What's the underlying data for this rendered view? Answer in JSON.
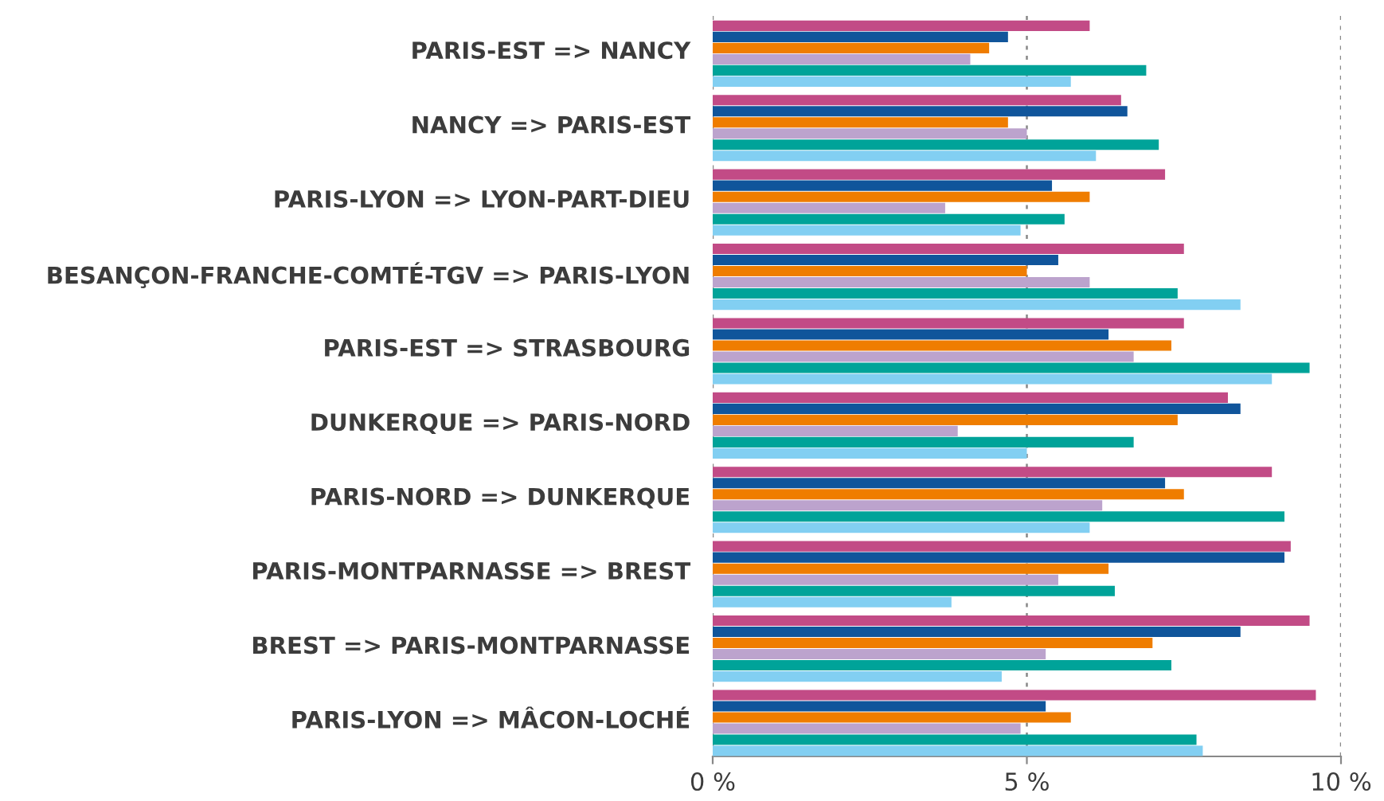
{
  "chart_data": {
    "type": "bar",
    "orientation": "horizontal",
    "categories": [
      "PARIS-EST => NANCY",
      "NANCY => PARIS-EST",
      "PARIS-LYON => LYON-PART-DIEU",
      "BESANÇON-FRANCHE-COMTÉ-TGV => PARIS-LYON",
      "PARIS-EST => STRASBOURG",
      "DUNKERQUE => PARIS-NORD",
      "PARIS-NORD => DUNKERQUE",
      "PARIS-MONTPARNASSE => BREST",
      "BREST => PARIS-MONTPARNASSE",
      "PARIS-LYON => MÂCON-LOCHÉ"
    ],
    "series": [
      {
        "color": "#c24b86",
        "values": [
          6.0,
          6.5,
          7.2,
          7.5,
          7.5,
          8.2,
          8.9,
          9.2,
          9.5,
          9.6
        ]
      },
      {
        "color": "#10559b",
        "values": [
          4.7,
          6.6,
          5.4,
          5.5,
          6.3,
          8.4,
          7.2,
          9.1,
          8.4,
          5.3
        ]
      },
      {
        "color": "#ef7d00",
        "values": [
          4.4,
          4.7,
          6.0,
          5.0,
          7.3,
          7.4,
          7.5,
          6.3,
          7.0,
          5.7
        ]
      },
      {
        "color": "#bca3cd",
        "values": [
          4.1,
          5.0,
          3.7,
          6.0,
          6.7,
          3.9,
          6.2,
          5.5,
          5.3,
          4.9
        ]
      },
      {
        "color": "#00a399",
        "values": [
          6.9,
          7.1,
          5.6,
          7.4,
          9.5,
          6.7,
          9.1,
          6.4,
          7.3,
          7.7
        ]
      },
      {
        "color": "#82cff2",
        "values": [
          5.7,
          6.1,
          4.9,
          8.4,
          8.9,
          5.0,
          6.0,
          3.8,
          4.6,
          7.8
        ]
      }
    ],
    "xlim": [
      0,
      10
    ],
    "xticks": [
      {
        "value": 0,
        "label": "0 %"
      },
      {
        "value": 5,
        "label": "5 %"
      },
      {
        "value": 10,
        "label": "10 %"
      }
    ],
    "grid": "x"
  }
}
